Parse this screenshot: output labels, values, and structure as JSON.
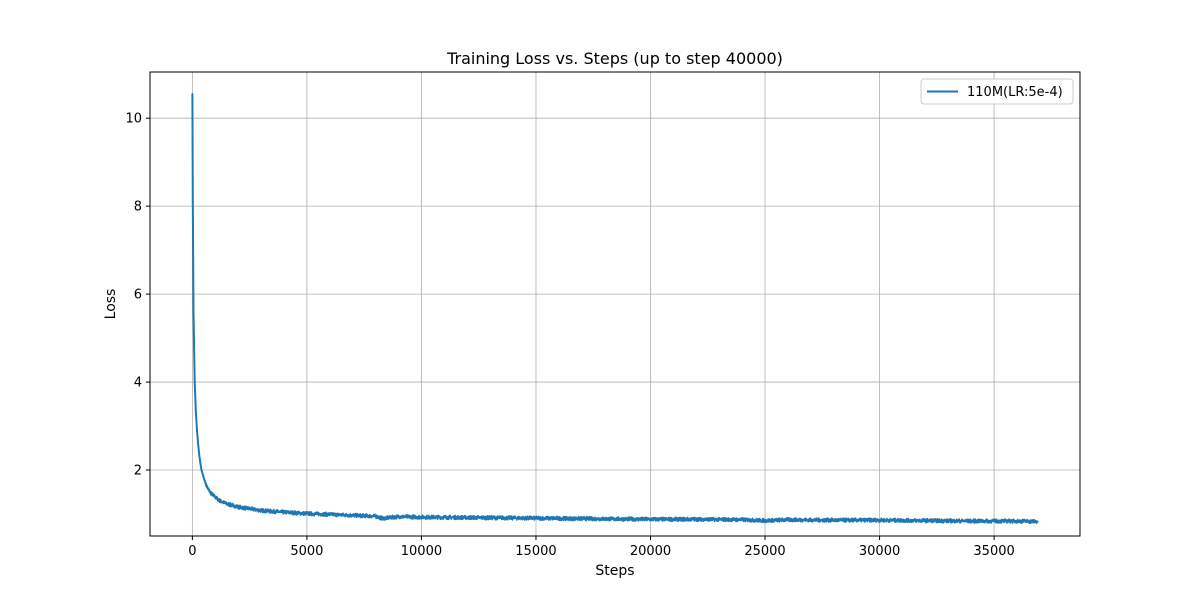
{
  "chart_data": {
    "type": "line",
    "title": "Training Loss vs. Steps (up to step 40000)",
    "xlabel": "Steps",
    "ylabel": "Loss",
    "xlim": [
      -1850,
      38750
    ],
    "ylim": [
      0.5,
      11.05
    ],
    "xticks": [
      0,
      5000,
      10000,
      15000,
      20000,
      25000,
      30000,
      35000
    ],
    "yticks": [
      2,
      4,
      6,
      8,
      10
    ],
    "grid": true,
    "legend_position": "top-right",
    "colors": {
      "series": "#1f77b4",
      "grid": "#b0b0b0",
      "axis": "#000000"
    },
    "series": [
      {
        "name": "110M(LR:5e-4)",
        "x": [
          0,
          20,
          50,
          100,
          150,
          200,
          250,
          300,
          350,
          400,
          500,
          600,
          700,
          800,
          1000,
          1200,
          1500,
          1800,
          2000,
          2500,
          3000,
          4000,
          5000,
          6000,
          7000,
          8000,
          8300,
          9000,
          10000,
          12000,
          14000,
          16000,
          18000,
          20000,
          22000,
          24000,
          25000,
          26000,
          28000,
          30000,
          32000,
          34000,
          35000,
          36000,
          36900
        ],
        "y": [
          10.55,
          8.1,
          5.6,
          4.0,
          3.35,
          2.9,
          2.6,
          2.35,
          2.15,
          2.0,
          1.82,
          1.66,
          1.56,
          1.48,
          1.38,
          1.3,
          1.23,
          1.19,
          1.16,
          1.12,
          1.08,
          1.04,
          1.01,
          0.99,
          0.97,
          0.95,
          0.9,
          0.94,
          0.93,
          0.92,
          0.91,
          0.9,
          0.89,
          0.88,
          0.88,
          0.87,
          0.85,
          0.87,
          0.86,
          0.86,
          0.85,
          0.84,
          0.84,
          0.84,
          0.83
        ]
      }
    ]
  }
}
